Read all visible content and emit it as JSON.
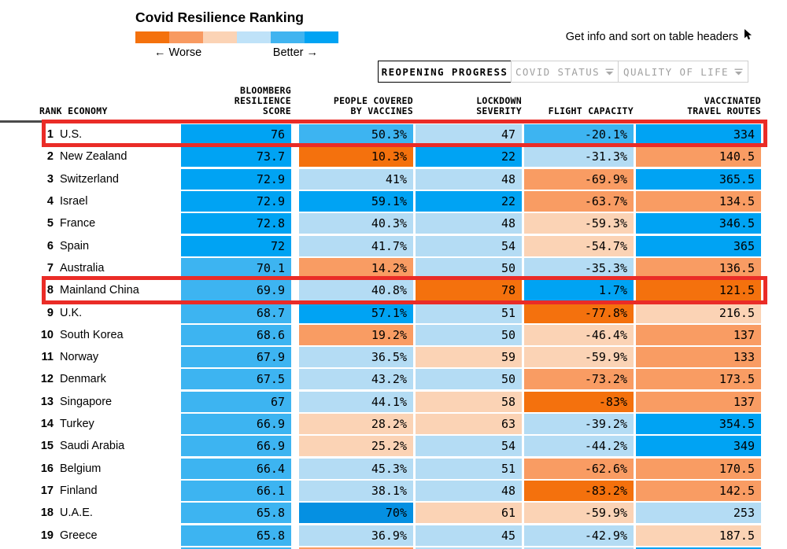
{
  "legend": {
    "title": "Covid Resilience Ranking",
    "worse_label": "← Worse",
    "better_label": "Better →",
    "scale_colors": [
      "#f4710d",
      "#f89a61",
      "#fbd3b5",
      "#bfe2f8",
      "#41b4f0",
      "#00a3f3"
    ]
  },
  "info_hint": {
    "text": "Get info and sort on table headers"
  },
  "tabs": [
    {
      "label": "REOPENING PROGRESS",
      "active": true
    },
    {
      "label": "COVID STATUS",
      "active": false
    },
    {
      "label": "QUALITY OF LIFE",
      "active": false
    }
  ],
  "table": {
    "columns": [
      "RANK ECONOMY",
      "BLOOMBERG\nRESILIENCE\nSCORE",
      "PEOPLE COVERED\nBY VACCINES",
      "LOCKDOWN\nSEVERITY",
      "FLIGHT CAPACITY",
      "VACCINATED\nTRAVEL ROUTES"
    ],
    "palette": {
      "o3": "#f4710d",
      "o2": "#f99c63",
      "o1": "#fbd3b5",
      "b1": "#b4dcf4",
      "b2": "#3db4f1",
      "b3": "#00a3f3",
      "b4": "#0590e2"
    },
    "highlight_color": "#ea2c27"
  },
  "chart_data": {
    "type": "table",
    "title": "Covid Resilience Ranking",
    "legend": {
      "worse": "← Worse",
      "better": "Better →"
    },
    "tabs": [
      "REOPENING PROGRESS",
      "COVID STATUS",
      "QUALITY OF LIFE"
    ],
    "columns": [
      "RANK",
      "ECONOMY",
      "BLOOMBERG RESILIENCE SCORE",
      "PEOPLE COVERED BY VACCINES",
      "LOCKDOWN SEVERITY",
      "FLIGHT CAPACITY",
      "VACCINATED TRAVEL ROUTES"
    ],
    "rows": [
      {
        "rank": "1",
        "economy": "U.S.",
        "highlighted": true,
        "score": {
          "v": "76",
          "c": "b3"
        },
        "vaccines": {
          "v": "50.3%",
          "c": "b2"
        },
        "lockdown": {
          "v": "47",
          "c": "b1"
        },
        "flight": {
          "v": "-20.1%",
          "c": "b2"
        },
        "routes": {
          "v": "334",
          "c": "b3"
        }
      },
      {
        "rank": "2",
        "economy": "New Zealand",
        "highlighted": false,
        "score": {
          "v": "73.7",
          "c": "b3"
        },
        "vaccines": {
          "v": "10.3%",
          "c": "o3"
        },
        "lockdown": {
          "v": "22",
          "c": "b3"
        },
        "flight": {
          "v": "-31.3%",
          "c": "b1"
        },
        "routes": {
          "v": "140.5",
          "c": "o2"
        }
      },
      {
        "rank": "3",
        "economy": "Switzerland",
        "highlighted": false,
        "score": {
          "v": "72.9",
          "c": "b3"
        },
        "vaccines": {
          "v": "41%",
          "c": "b1"
        },
        "lockdown": {
          "v": "48",
          "c": "b1"
        },
        "flight": {
          "v": "-69.9%",
          "c": "o2"
        },
        "routes": {
          "v": "365.5",
          "c": "b3"
        }
      },
      {
        "rank": "4",
        "economy": "Israel",
        "highlighted": false,
        "score": {
          "v": "72.9",
          "c": "b3"
        },
        "vaccines": {
          "v": "59.1%",
          "c": "b3"
        },
        "lockdown": {
          "v": "22",
          "c": "b3"
        },
        "flight": {
          "v": "-63.7%",
          "c": "o2"
        },
        "routes": {
          "v": "134.5",
          "c": "o2"
        }
      },
      {
        "rank": "5",
        "economy": "France",
        "highlighted": false,
        "score": {
          "v": "72.8",
          "c": "b3"
        },
        "vaccines": {
          "v": "40.3%",
          "c": "b1"
        },
        "lockdown": {
          "v": "48",
          "c": "b1"
        },
        "flight": {
          "v": "-59.3%",
          "c": "o1"
        },
        "routes": {
          "v": "346.5",
          "c": "b3"
        }
      },
      {
        "rank": "6",
        "economy": "Spain",
        "highlighted": false,
        "score": {
          "v": "72",
          "c": "b3"
        },
        "vaccines": {
          "v": "41.7%",
          "c": "b1"
        },
        "lockdown": {
          "v": "54",
          "c": "b1"
        },
        "flight": {
          "v": "-54.7%",
          "c": "o1"
        },
        "routes": {
          "v": "365",
          "c": "b3"
        }
      },
      {
        "rank": "7",
        "economy": "Australia",
        "highlighted": false,
        "score": {
          "v": "70.1",
          "c": "b2"
        },
        "vaccines": {
          "v": "14.2%",
          "c": "o2"
        },
        "lockdown": {
          "v": "50",
          "c": "b1"
        },
        "flight": {
          "v": "-35.3%",
          "c": "b1"
        },
        "routes": {
          "v": "136.5",
          "c": "o2"
        }
      },
      {
        "rank": "8",
        "economy": "Mainland China",
        "highlighted": true,
        "score": {
          "v": "69.9",
          "c": "b2"
        },
        "vaccines": {
          "v": "40.8%",
          "c": "b1"
        },
        "lockdown": {
          "v": "78",
          "c": "o3"
        },
        "flight": {
          "v": "1.7%",
          "c": "b3"
        },
        "routes": {
          "v": "121.5",
          "c": "o3"
        }
      },
      {
        "rank": "9",
        "economy": "U.K.",
        "highlighted": false,
        "score": {
          "v": "68.7",
          "c": "b2"
        },
        "vaccines": {
          "v": "57.1%",
          "c": "b3"
        },
        "lockdown": {
          "v": "51",
          "c": "b1"
        },
        "flight": {
          "v": "-77.8%",
          "c": "o3"
        },
        "routes": {
          "v": "216.5",
          "c": "o1"
        }
      },
      {
        "rank": "10",
        "economy": "South Korea",
        "highlighted": false,
        "score": {
          "v": "68.6",
          "c": "b2"
        },
        "vaccines": {
          "v": "19.2%",
          "c": "o2"
        },
        "lockdown": {
          "v": "50",
          "c": "b1"
        },
        "flight": {
          "v": "-46.4%",
          "c": "o1"
        },
        "routes": {
          "v": "137",
          "c": "o2"
        }
      },
      {
        "rank": "11",
        "economy": "Norway",
        "highlighted": false,
        "score": {
          "v": "67.9",
          "c": "b2"
        },
        "vaccines": {
          "v": "36.5%",
          "c": "b1"
        },
        "lockdown": {
          "v": "59",
          "c": "o1"
        },
        "flight": {
          "v": "-59.9%",
          "c": "o1"
        },
        "routes": {
          "v": "133",
          "c": "o2"
        }
      },
      {
        "rank": "12",
        "economy": "Denmark",
        "highlighted": false,
        "score": {
          "v": "67.5",
          "c": "b2"
        },
        "vaccines": {
          "v": "43.2%",
          "c": "b1"
        },
        "lockdown": {
          "v": "50",
          "c": "b1"
        },
        "flight": {
          "v": "-73.2%",
          "c": "o2"
        },
        "routes": {
          "v": "173.5",
          "c": "o2"
        }
      },
      {
        "rank": "13",
        "economy": "Singapore",
        "highlighted": false,
        "score": {
          "v": "67",
          "c": "b2"
        },
        "vaccines": {
          "v": "44.1%",
          "c": "b1"
        },
        "lockdown": {
          "v": "58",
          "c": "o1"
        },
        "flight": {
          "v": "-83%",
          "c": "o3"
        },
        "routes": {
          "v": "137",
          "c": "o2"
        }
      },
      {
        "rank": "14",
        "economy": "Turkey",
        "highlighted": false,
        "score": {
          "v": "66.9",
          "c": "b2"
        },
        "vaccines": {
          "v": "28.2%",
          "c": "o1"
        },
        "lockdown": {
          "v": "63",
          "c": "o1"
        },
        "flight": {
          "v": "-39.2%",
          "c": "b1"
        },
        "routes": {
          "v": "354.5",
          "c": "b3"
        }
      },
      {
        "rank": "15",
        "economy": "Saudi Arabia",
        "highlighted": false,
        "score": {
          "v": "66.9",
          "c": "b2"
        },
        "vaccines": {
          "v": "25.2%",
          "c": "o1"
        },
        "lockdown": {
          "v": "54",
          "c": "b1"
        },
        "flight": {
          "v": "-44.2%",
          "c": "b1"
        },
        "routes": {
          "v": "349",
          "c": "b3"
        }
      },
      {
        "rank": "16",
        "economy": "Belgium",
        "highlighted": false,
        "score": {
          "v": "66.4",
          "c": "b2"
        },
        "vaccines": {
          "v": "45.3%",
          "c": "b1"
        },
        "lockdown": {
          "v": "51",
          "c": "b1"
        },
        "flight": {
          "v": "-62.6%",
          "c": "o2"
        },
        "routes": {
          "v": "170.5",
          "c": "o2"
        }
      },
      {
        "rank": "17",
        "economy": "Finland",
        "highlighted": false,
        "score": {
          "v": "66.1",
          "c": "b2"
        },
        "vaccines": {
          "v": "38.1%",
          "c": "b1"
        },
        "lockdown": {
          "v": "48",
          "c": "b1"
        },
        "flight": {
          "v": "-83.2%",
          "c": "o3"
        },
        "routes": {
          "v": "142.5",
          "c": "o2"
        }
      },
      {
        "rank": "18",
        "economy": "U.A.E.",
        "highlighted": false,
        "score": {
          "v": "65.8",
          "c": "b2"
        },
        "vaccines": {
          "v": "70%",
          "c": "b4"
        },
        "lockdown": {
          "v": "61",
          "c": "o1"
        },
        "flight": {
          "v": "-59.9%",
          "c": "o1"
        },
        "routes": {
          "v": "253",
          "c": "b1"
        }
      },
      {
        "rank": "19",
        "economy": "Greece",
        "highlighted": false,
        "score": {
          "v": "65.8",
          "c": "b2"
        },
        "vaccines": {
          "v": "36.9%",
          "c": "b1"
        },
        "lockdown": {
          "v": "45",
          "c": "b1"
        },
        "flight": {
          "v": "-42.9%",
          "c": "b1"
        },
        "routes": {
          "v": "187.5",
          "c": "o1"
        }
      }
    ],
    "partial_row_colors": [
      "b2",
      "o2",
      "b1",
      "b1",
      "b3"
    ]
  }
}
